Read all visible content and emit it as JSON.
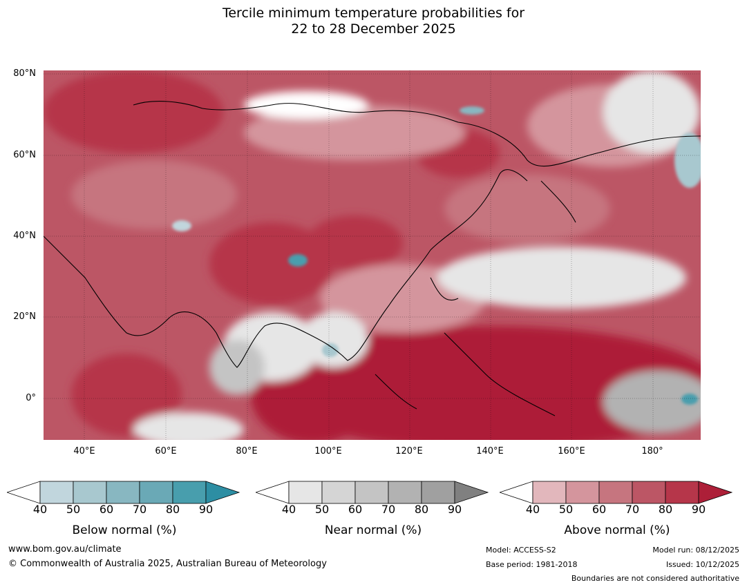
{
  "title": {
    "line1": "Tercile minimum temperature probabilities for",
    "line2": "22 to 28 December 2025"
  },
  "map": {
    "description_icon": "map-icon",
    "lat_ticks": [
      "80°N",
      "60°N",
      "40°N",
      "20°N",
      "0°"
    ],
    "lon_ticks": [
      "40°E",
      "60°E",
      "80°E",
      "100°E",
      "120°E",
      "140°E",
      "160°E",
      "180°"
    ],
    "lat_range": [
      -10,
      80
    ],
    "lon_range": [
      30,
      191
    ]
  },
  "legends": [
    {
      "label": "Below normal (%)",
      "ticks": [
        "40",
        "50",
        "60",
        "70",
        "80",
        "90"
      ],
      "colors": [
        "#ffffff",
        "#c1d6dd",
        "#a8c8cf",
        "#88b7c1",
        "#6aa9b6",
        "#489ead",
        "#2d8ea3"
      ]
    },
    {
      "label": "Near normal (%)",
      "ticks": [
        "40",
        "50",
        "60",
        "70",
        "80",
        "90"
      ],
      "colors": [
        "#ffffff",
        "#e6e6e6",
        "#d5d5d5",
        "#c4c4c4",
        "#b2b2b2",
        "#a0a0a0",
        "#808080"
      ]
    },
    {
      "label": "Above normal (%)",
      "ticks": [
        "40",
        "50",
        "60",
        "70",
        "80",
        "90"
      ],
      "colors": [
        "#ffffff",
        "#e2b7bc",
        "#d4959d",
        "#c6757f",
        "#bc5665",
        "#b6364a",
        "#ad1f38"
      ]
    }
  ],
  "footer": {
    "website": "www.bom.gov.au/climate",
    "copyright": "© Commonwealth of Australia 2025, Australian Bureau of Meteorology",
    "model": "Model: ACCESS-S2",
    "base_period": "Base period: 1981-2018",
    "model_run": "Model run: 08/12/2025",
    "issued": "Issued: 10/12/2025",
    "boundaries": "Boundaries are not considered authoritative"
  }
}
